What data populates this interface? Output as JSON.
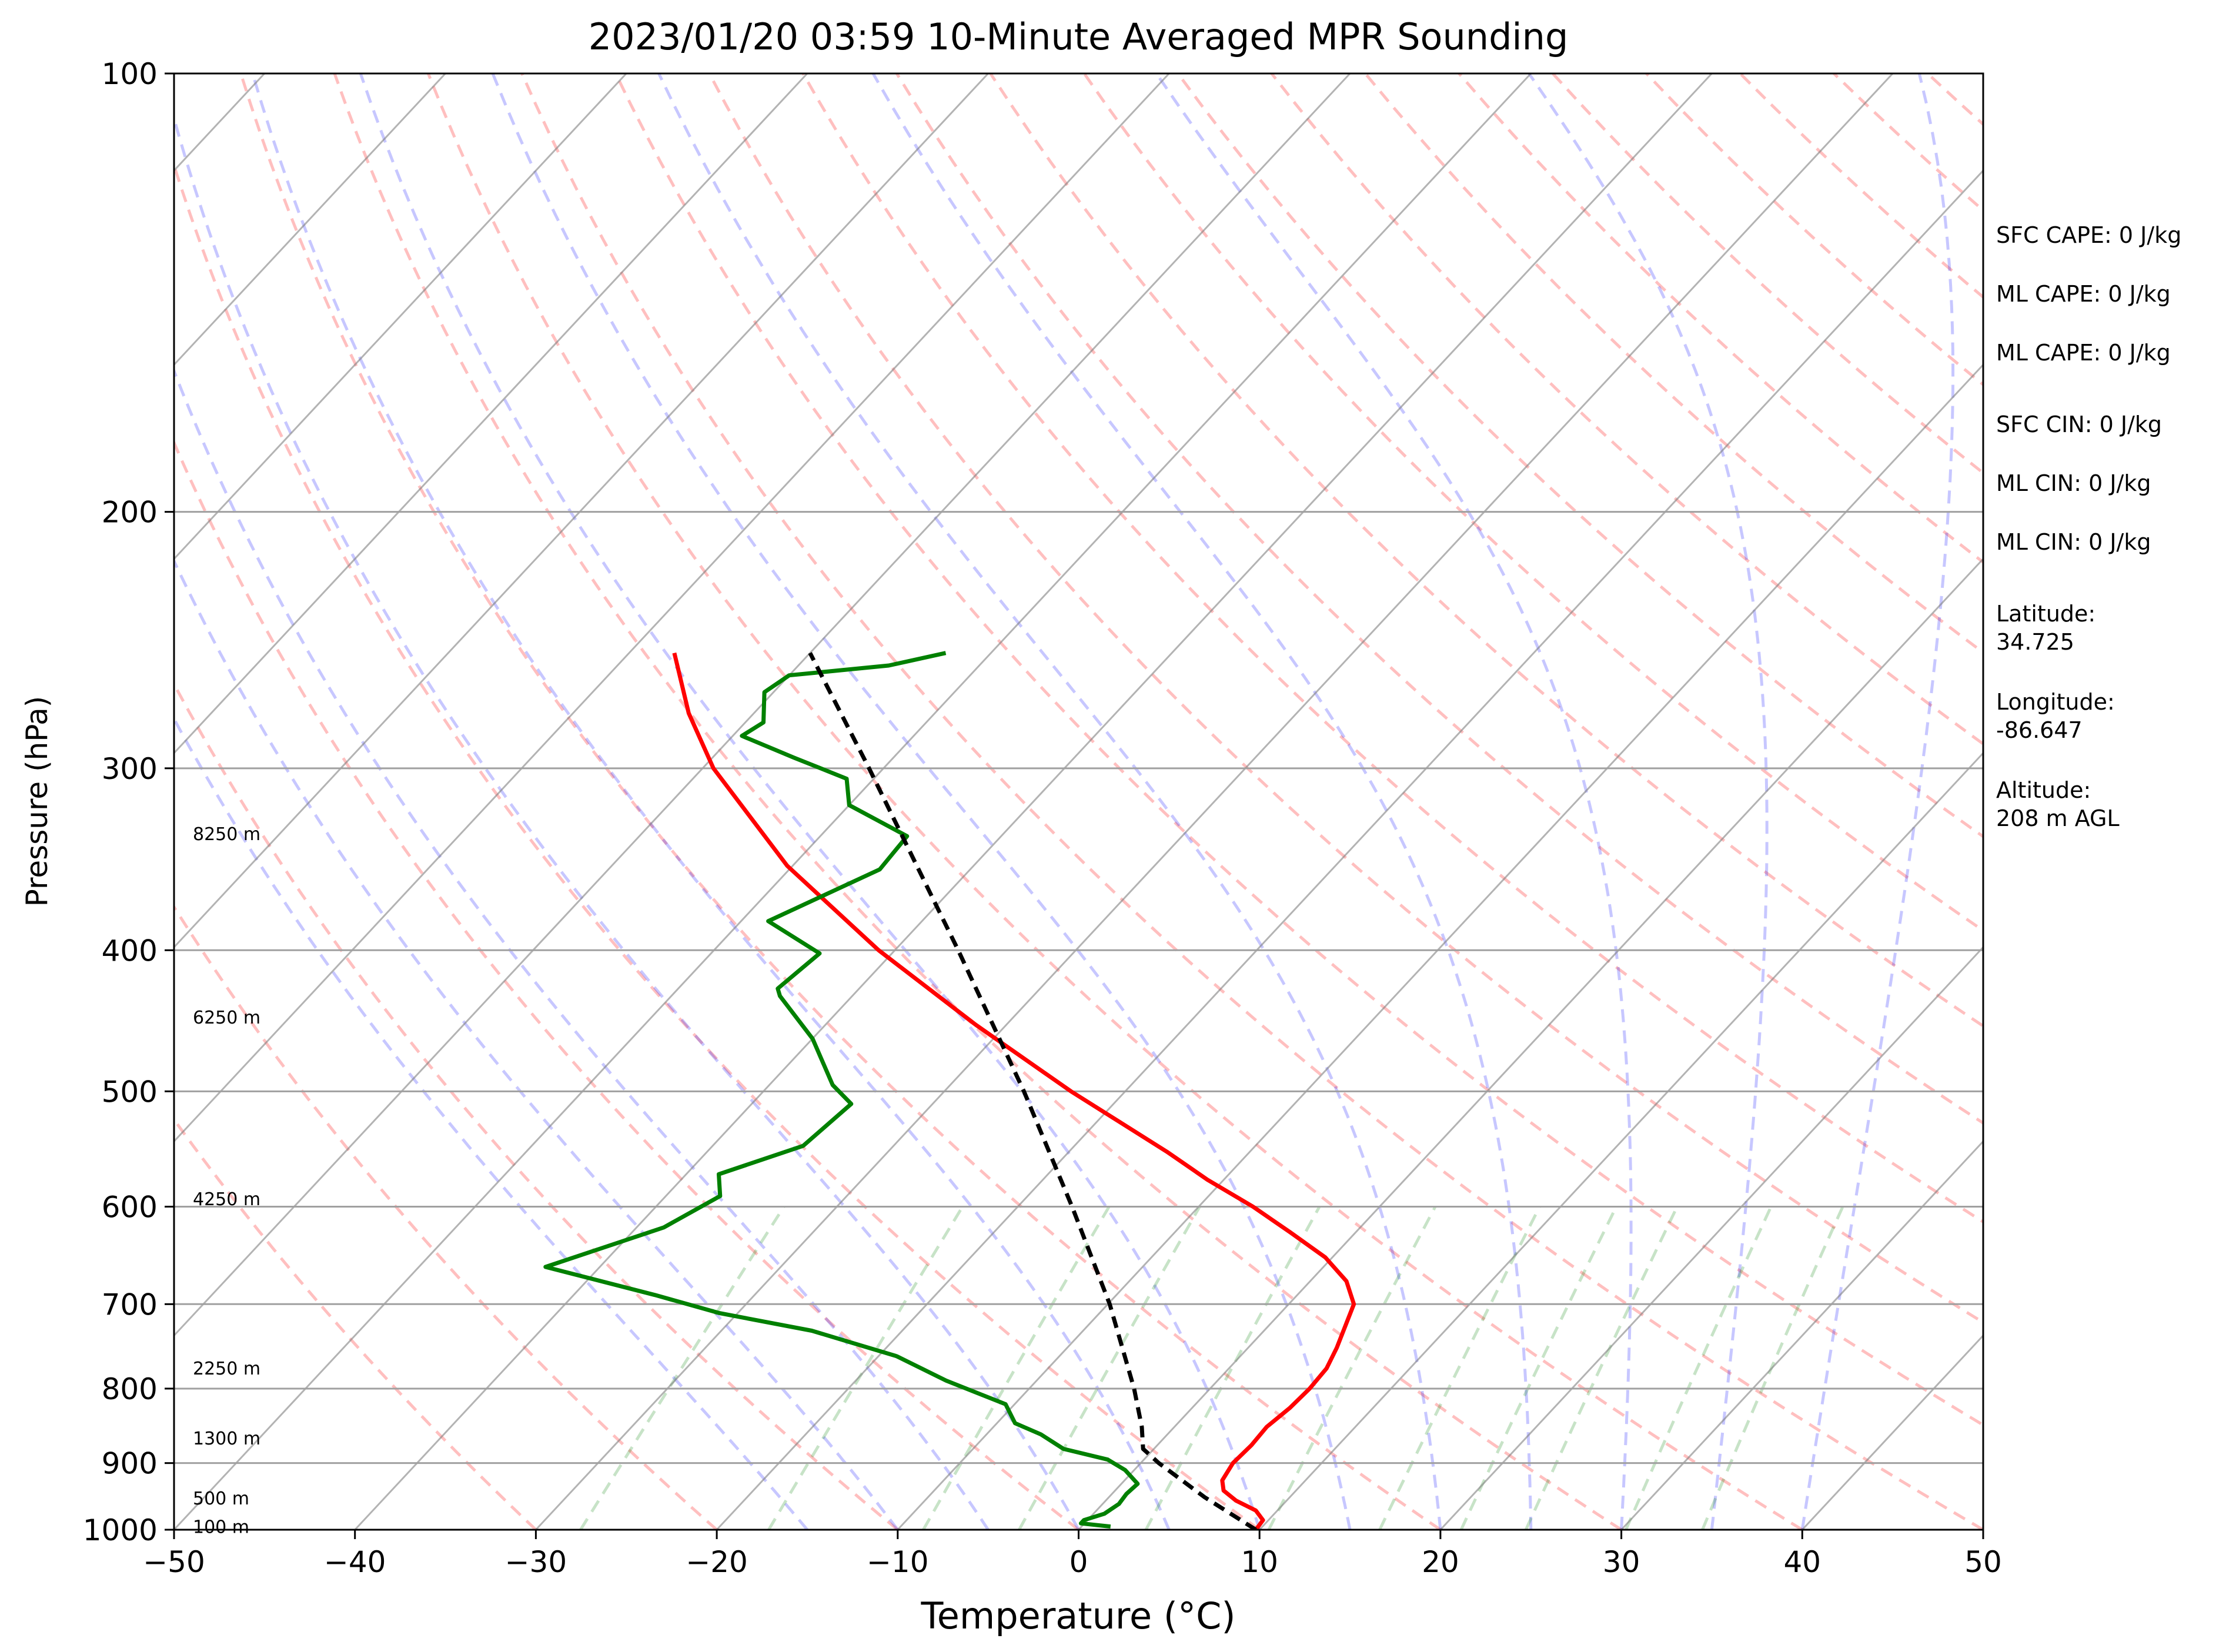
{
  "chart_data": {
    "type": "line",
    "subtype": "skew-t log-p sounding",
    "title": "2023/01/20 03:59 10-Minute Averaged MPR Sounding",
    "xlabel": "Temperature (°C)",
    "ylabel": "Pressure (hPa)",
    "xlim": [
      -50,
      50
    ],
    "ylim": [
      1000,
      100
    ],
    "y_scale": "log",
    "skew_deg_per_decade": 75,
    "x_ticks": [
      -50,
      -40,
      -30,
      -20,
      -10,
      0,
      10,
      20,
      30,
      40,
      50
    ],
    "x_tick_labels": [
      "−50",
      "−40",
      "−30",
      "−20",
      "−10",
      "0",
      "10",
      "20",
      "30",
      "40",
      "50"
    ],
    "y_ticks": [
      1000,
      900,
      800,
      700,
      600,
      500,
      400,
      300,
      200,
      100
    ],
    "y_tick_labels": [
      "1000",
      "900",
      "800",
      "700",
      "600",
      "500",
      "400",
      "300",
      "200",
      "100"
    ],
    "grid": true,
    "height_labels": [
      {
        "text": "100 m",
        "p": 996
      },
      {
        "text": "500 m",
        "p": 952
      },
      {
        "text": "1300 m",
        "p": 866
      },
      {
        "text": "2250 m",
        "p": 775
      },
      {
        "text": "4250 m",
        "p": 593
      },
      {
        "text": "6250 m",
        "p": 445
      },
      {
        "text": "8250 m",
        "p": 333
      }
    ],
    "series": [
      {
        "role": "temperature",
        "color": "#ff0000",
        "points": [
          [
            1000,
            9.8
          ],
          [
            985,
            9.7
          ],
          [
            970,
            8.8
          ],
          [
            955,
            7.2
          ],
          [
            940,
            6.0
          ],
          [
            925,
            5.4
          ],
          [
            900,
            5.1
          ],
          [
            875,
            5.2
          ],
          [
            850,
            5.1
          ],
          [
            825,
            5.4
          ],
          [
            800,
            5.5
          ],
          [
            775,
            5.4
          ],
          [
            750,
            4.9
          ],
          [
            700,
            3.6
          ],
          [
            675,
            2.0
          ],
          [
            650,
            -0.4
          ],
          [
            625,
            -3.6
          ],
          [
            600,
            -7.0
          ],
          [
            575,
            -10.9
          ],
          [
            550,
            -14.6
          ],
          [
            500,
            -23.0
          ],
          [
            450,
            -31.7
          ],
          [
            400,
            -40.9
          ],
          [
            350,
            -50.3
          ],
          [
            300,
            -59.4
          ],
          [
            275,
            -63.6
          ],
          [
            250,
            -67.5
          ]
        ]
      },
      {
        "role": "dewpoint",
        "color": "#008000",
        "points": [
          [
            995,
            1.6
          ],
          [
            990,
            -0.2
          ],
          [
            985,
            -0.2
          ],
          [
            975,
            0.6
          ],
          [
            960,
            0.9
          ],
          [
            945,
            0.8
          ],
          [
            930,
            0.9
          ],
          [
            910,
            -0.5
          ],
          [
            895,
            -2.0
          ],
          [
            880,
            -5.0
          ],
          [
            860,
            -7.0
          ],
          [
            845,
            -9.0
          ],
          [
            820,
            -10.5
          ],
          [
            790,
            -15.0
          ],
          [
            760,
            -19.0
          ],
          [
            730,
            -25.0
          ],
          [
            710,
            -31.0
          ],
          [
            690,
            -35.5
          ],
          [
            660,
            -43.0
          ],
          [
            620,
            -38.5
          ],
          [
            590,
            -37.0
          ],
          [
            570,
            -38.2
          ],
          [
            545,
            -35.0
          ],
          [
            510,
            -34.5
          ],
          [
            495,
            -36.5
          ],
          [
            460,
            -40.0
          ],
          [
            430,
            -44.0
          ],
          [
            425,
            -44.5
          ],
          [
            402,
            -44.0
          ],
          [
            382,
            -48.5
          ],
          [
            352,
            -45.0
          ],
          [
            334,
            -45.2
          ],
          [
            318,
            -50.0
          ],
          [
            305,
            -51.5
          ],
          [
            295,
            -55.5
          ],
          [
            285,
            -59.5
          ],
          [
            279,
            -59.0
          ],
          [
            266,
            -60.5
          ],
          [
            259,
            -60.0
          ],
          [
            255,
            -55.0
          ],
          [
            250,
            -52.5
          ]
        ]
      },
      {
        "role": "parcel",
        "color": "#000000",
        "style": "dashed",
        "points": [
          [
            1000,
            9.8
          ],
          [
            950,
            5.3
          ],
          [
            900,
            1.0
          ],
          [
            880,
            -0.6
          ],
          [
            850,
            -1.8
          ],
          [
            800,
            -4.2
          ],
          [
            700,
            -9.9
          ],
          [
            600,
            -17.0
          ],
          [
            500,
            -25.6
          ],
          [
            400,
            -36.5
          ],
          [
            300,
            -50.8
          ],
          [
            250,
            -60.0
          ]
        ]
      }
    ]
  },
  "side_panel": {
    "sfc_cape": "SFC CAPE: 0 J/kg",
    "ml_cape_1": "ML CAPE: 0 J/kg",
    "ml_cape_2": "ML CAPE: 0 J/kg",
    "sfc_cin": "SFC CIN: 0 J/kg",
    "ml_cin_1": "ML CIN: 0 J/kg",
    "ml_cin_2": "ML CIN: 0 J/kg",
    "latitude": "Latitude:\n34.725",
    "longitude": "Longitude:\n-86.647",
    "altitude": "Altitude:\n208 m AGL"
  },
  "colors": {
    "dry_adiabats": "#ff0000",
    "moist_adiabats": "#0000ff",
    "mixing_ratio": "#008000",
    "isotherms": "#808080"
  }
}
